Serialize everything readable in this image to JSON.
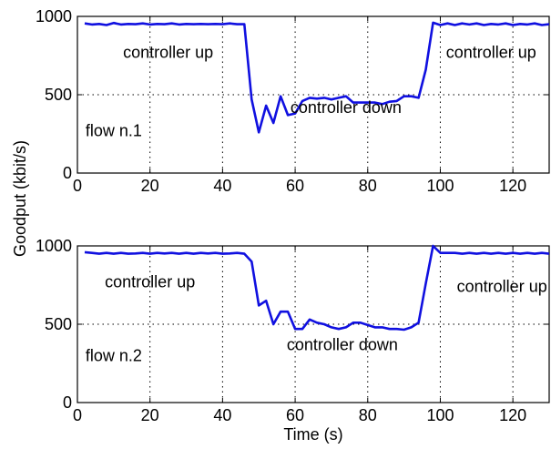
{
  "chart_data": [
    {
      "type": "line",
      "xlim": [
        0,
        130
      ],
      "ylim": [
        0,
        1000
      ],
      "xticks": [
        0,
        20,
        40,
        60,
        80,
        100,
        120
      ],
      "yticks": [
        0,
        500,
        1000
      ],
      "grid": "dotted",
      "line_color": "#1010e0",
      "annotations": [
        {
          "text": "controller up",
          "x": 25,
          "y": 770
        },
        {
          "text": "controller up",
          "x": 114,
          "y": 770
        },
        {
          "text": "controller down",
          "x": 74,
          "y": 420
        },
        {
          "text": "flow n.1",
          "x": 10,
          "y": 270
        }
      ],
      "series": [
        {
          "x": [
            2,
            4,
            6,
            8,
            10,
            12,
            14,
            16,
            18,
            20,
            22,
            24,
            26,
            28,
            30,
            32,
            34,
            36,
            38,
            40,
            42,
            44,
            46,
            48,
            50,
            52,
            54,
            56,
            58,
            60,
            62,
            64,
            66,
            68,
            70,
            72,
            74,
            76,
            78,
            80,
            82,
            84,
            86,
            88,
            90,
            92,
            94,
            96,
            98,
            100,
            102,
            104,
            106,
            108,
            110,
            112,
            114,
            116,
            118,
            120,
            122,
            124,
            126,
            128,
            130
          ],
          "y": [
            955,
            948,
            952,
            945,
            958,
            948,
            952,
            950,
            955,
            948,
            952,
            950,
            955,
            948,
            952,
            950,
            952,
            950,
            952,
            950,
            955,
            950,
            950,
            470,
            260,
            430,
            320,
            490,
            370,
            380,
            460,
            480,
            475,
            480,
            470,
            480,
            490,
            450,
            450,
            450,
            450,
            440,
            455,
            460,
            490,
            490,
            480,
            660,
            960,
            945,
            955,
            945,
            955,
            948,
            955,
            945,
            952,
            948,
            955,
            945,
            952,
            948,
            955,
            945,
            950
          ]
        }
      ]
    },
    {
      "type": "line",
      "xlim": [
        0,
        130
      ],
      "ylim": [
        0,
        1000
      ],
      "xticks": [
        0,
        20,
        40,
        60,
        80,
        100,
        120
      ],
      "yticks": [
        0,
        500,
        1000
      ],
      "grid": "dotted",
      "line_color": "#1010e0",
      "xlabel": "Time (s)",
      "annotations": [
        {
          "text": "controller up",
          "x": 20,
          "y": 770
        },
        {
          "text": "controller up",
          "x": 117,
          "y": 740
        },
        {
          "text": "controller down",
          "x": 73,
          "y": 370
        },
        {
          "text": "flow n.2",
          "x": 10,
          "y": 300
        }
      ],
      "series": [
        {
          "x": [
            2,
            4,
            6,
            8,
            10,
            12,
            14,
            16,
            18,
            20,
            22,
            24,
            26,
            28,
            30,
            32,
            34,
            36,
            38,
            40,
            42,
            44,
            46,
            48,
            50,
            52,
            54,
            56,
            58,
            60,
            62,
            64,
            66,
            68,
            70,
            72,
            74,
            76,
            78,
            80,
            82,
            84,
            86,
            88,
            90,
            92,
            94,
            96,
            98,
            100,
            102,
            104,
            106,
            108,
            110,
            112,
            114,
            116,
            118,
            120,
            122,
            124,
            126,
            128,
            130
          ],
          "y": [
            960,
            955,
            950,
            955,
            950,
            955,
            950,
            952,
            955,
            950,
            955,
            952,
            955,
            950,
            955,
            950,
            955,
            952,
            955,
            950,
            952,
            955,
            950,
            900,
            620,
            650,
            500,
            580,
            580,
            470,
            470,
            530,
            510,
            500,
            480,
            470,
            480,
            510,
            510,
            495,
            480,
            480,
            470,
            470,
            465,
            480,
            510,
            760,
            1000,
            955,
            955,
            955,
            950,
            955,
            950,
            955,
            950,
            955,
            950,
            955,
            950,
            955,
            950,
            955,
            950
          ]
        }
      ]
    }
  ],
  "shared_ylabel": "Goodput (kbit/s)"
}
